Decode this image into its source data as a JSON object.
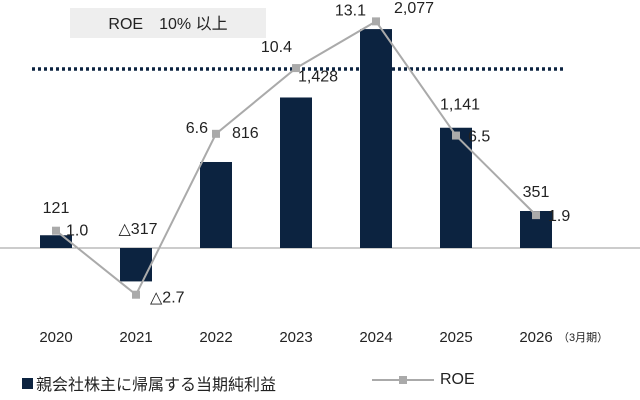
{
  "chart_data": {
    "type": "bar",
    "categories": [
      "2020",
      "2021",
      "2022",
      "2023",
      "2024",
      "2025",
      "2026"
    ],
    "category_note": "（3月期）",
    "series": [
      {
        "name": "親会社株主に帰属する当期純利益",
        "type": "bar",
        "values": [
          121,
          -317,
          816,
          1428,
          2077,
          1141,
          351
        ],
        "labels": [
          "121",
          "△317",
          "816",
          "1,428",
          "2,077",
          "1,141",
          "351"
        ],
        "color": "#0c2340"
      },
      {
        "name": "ROE",
        "type": "line",
        "values": [
          1.0,
          -2.7,
          6.6,
          10.4,
          13.1,
          6.5,
          1.9
        ],
        "labels": [
          "1.0",
          "△2.7",
          "6.6",
          "10.4",
          "13.1",
          "6.5",
          "1.9"
        ],
        "color": "#aaaaaa"
      }
    ],
    "target_line": {
      "label": "ROE　10% 以上",
      "value": 10,
      "style": "dotted",
      "color": "#0c2340"
    }
  }
}
